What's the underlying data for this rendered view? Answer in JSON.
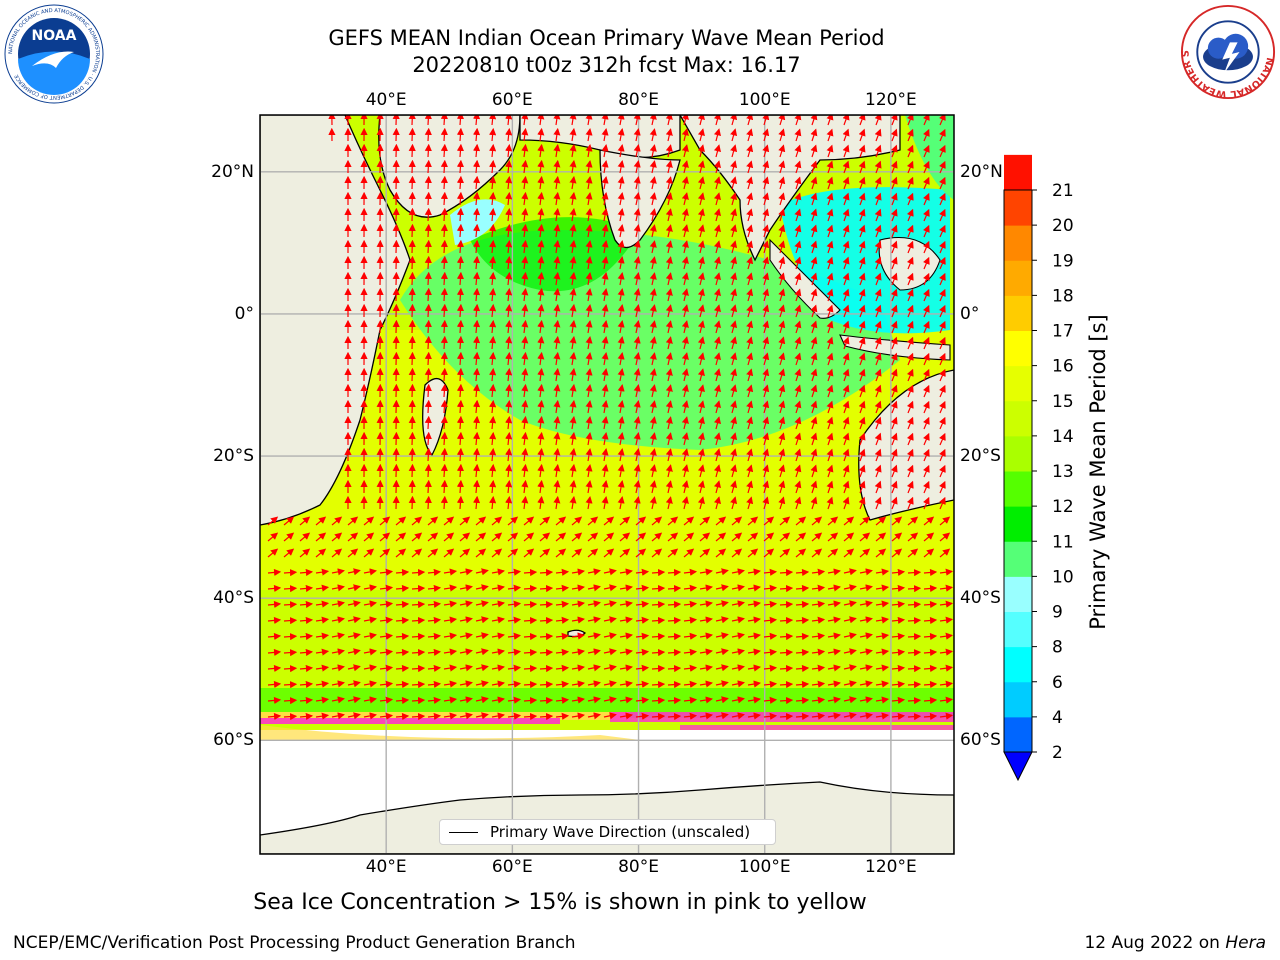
{
  "title": {
    "line1": "GEFS MEAN Indian Ocean Primary Wave Mean Period",
    "line2": "20220810 t00z 312h fcst   Max: 16.17"
  },
  "map": {
    "extent": {
      "lon": [
        20,
        130
      ],
      "lat": [
        -76,
        28
      ]
    },
    "lon_ticks": [
      {
        "value": 40,
        "label": "40°E"
      },
      {
        "value": 60,
        "label": "60°E"
      },
      {
        "value": 80,
        "label": "80°E"
      },
      {
        "value": 100,
        "label": "100°E"
      },
      {
        "value": 120,
        "label": "120°E"
      }
    ],
    "lat_ticks": [
      {
        "value": 20,
        "label": "20°N"
      },
      {
        "value": 0,
        "label": "0°"
      },
      {
        "value": -20,
        "label": "20°S"
      },
      {
        "value": -40,
        "label": "40°S"
      },
      {
        "value": -60,
        "label": "60°S"
      }
    ],
    "gridlines": true,
    "colors": {
      "land": "#eeeee0",
      "ice": "#ffffff",
      "arrows": "#ff0000",
      "ice_pink": "#ff33cc",
      "ice_yellow": "#ffdd44"
    }
  },
  "colorbar": {
    "label": "Primary Wave Mean Period [s]",
    "levels": [
      2,
      4,
      6,
      8,
      9,
      10,
      11,
      12,
      13,
      14,
      15,
      16,
      17,
      18,
      19,
      20,
      21
    ],
    "colors": [
      "#0066ff",
      "#00ccff",
      "#00ffff",
      "#55ffff",
      "#99ffff",
      "#55ff77",
      "#00ee00",
      "#55ff00",
      "#aaff00",
      "#ccff00",
      "#e6ff00",
      "#ffff00",
      "#ffcc00",
      "#ffaa00",
      "#ff8800",
      "#ff4400",
      "#ff1100"
    ],
    "under_color": "#0000ff"
  },
  "legend": {
    "label": "Primary Wave Direction (unscaled)"
  },
  "subtitle": "Sea Ice Concentration > 15% is shown in pink to yellow",
  "footer": {
    "left": "NCEP/EMC/Verification Post Processing Product Generation Branch",
    "right_prefix": "12 Aug 2022 on ",
    "right_host": "Hera"
  },
  "logos": {
    "left_text": "NOAA",
    "left_ring_text": "NATIONAL OCEANIC AND ATMOSPHERIC ADMINISTRATION · U.S. DEPARTMENT OF COMMERCE",
    "right_ring_text": "NATIONAL WEATHER SERVICE"
  }
}
